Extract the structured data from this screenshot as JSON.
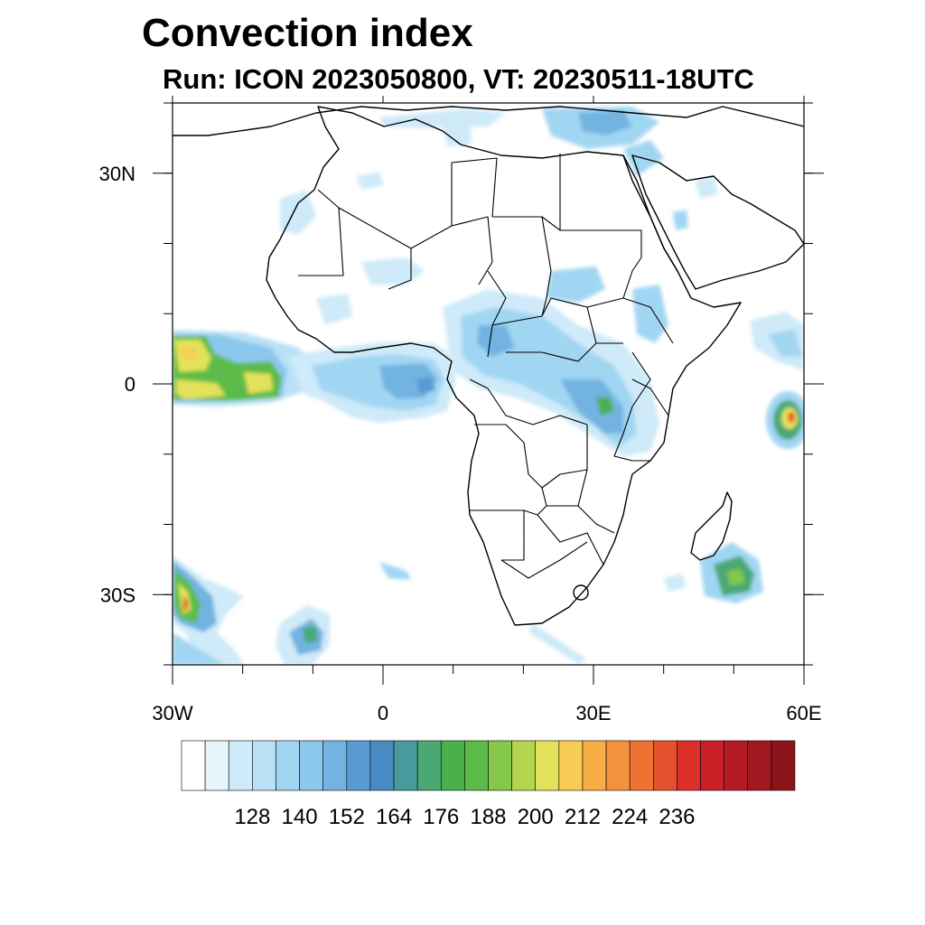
{
  "header": {
    "title": "Convection index",
    "subtitle": "Run: ICON 2023050800,  VT: 20230511-18UTC"
  },
  "map": {
    "extent": {
      "lon": [
        -30,
        60
      ],
      "lat": [
        -40,
        40
      ]
    },
    "x_ticks": [
      {
        "lon": -30,
        "label": "30W"
      },
      {
        "lon": 0,
        "label": "0"
      },
      {
        "lon": 30,
        "label": "30E"
      },
      {
        "lon": 60,
        "label": "60E"
      }
    ],
    "y_ticks": [
      {
        "lat": 30,
        "label": "30N"
      },
      {
        "lat": 0,
        "label": "0"
      },
      {
        "lat": -30,
        "label": "30S"
      }
    ],
    "minor_lon_step": 10,
    "minor_lat_step": 10
  },
  "colorbar": {
    "colors": [
      "#ffffff",
      "#e6f4fb",
      "#cfeaf8",
      "#b9e1f6",
      "#a1d6f3",
      "#8bc8ec",
      "#72b3e1",
      "#5a9ad3",
      "#4a8bc6",
      "#489b9c",
      "#4aa874",
      "#49b04c",
      "#5cbb48",
      "#86c84a",
      "#b3d54e",
      "#e3e25a",
      "#f8cc55",
      "#f9ad45",
      "#f4913c",
      "#ee7232",
      "#e4512c",
      "#dc2f2a",
      "#c91f26",
      "#b51b24",
      "#a21820",
      "#8b131a"
    ],
    "labels": [
      "128",
      "140",
      "152",
      "164",
      "176",
      "188",
      "200",
      "212",
      "224",
      "236"
    ]
  },
  "chart_data": {
    "type": "heatmap",
    "title": "Convection index",
    "subtitle": "Run: ICON 2023050800,  VT: 20230511-18UTC",
    "xlim": [
      -30,
      60
    ],
    "ylim": [
      -40,
      40
    ],
    "colorbar_ticks": [
      128,
      140,
      152,
      164,
      176,
      188,
      200,
      212,
      224,
      236
    ],
    "regions": [
      {
        "lon": -27,
        "lat": 1.5,
        "level": 15
      },
      {
        "lon": -18,
        "lat": 1.0,
        "level": 9
      },
      {
        "lon": -6,
        "lat": 0.5,
        "level": 5
      },
      {
        "lon": 8,
        "lat": 3.5,
        "level": 6
      },
      {
        "lon": 20,
        "lat": 1.0,
        "level": 5
      },
      {
        "lon": 29,
        "lat": -3.0,
        "level": 7
      },
      {
        "lon": 57,
        "lat": -5.0,
        "level": 18
      },
      {
        "lon": -27,
        "lat": -31.0,
        "level": 14
      },
      {
        "lon": -11,
        "lat": -34.0,
        "level": 8
      },
      {
        "lon": 48,
        "lat": -27.0,
        "level": 9
      },
      {
        "lon": 22,
        "lat": 37.0,
        "level": 6
      },
      {
        "lon": 15,
        "lat": 13.0,
        "level": 4
      },
      {
        "lon": 38,
        "lat": 8.0,
        "level": 5
      }
    ]
  }
}
